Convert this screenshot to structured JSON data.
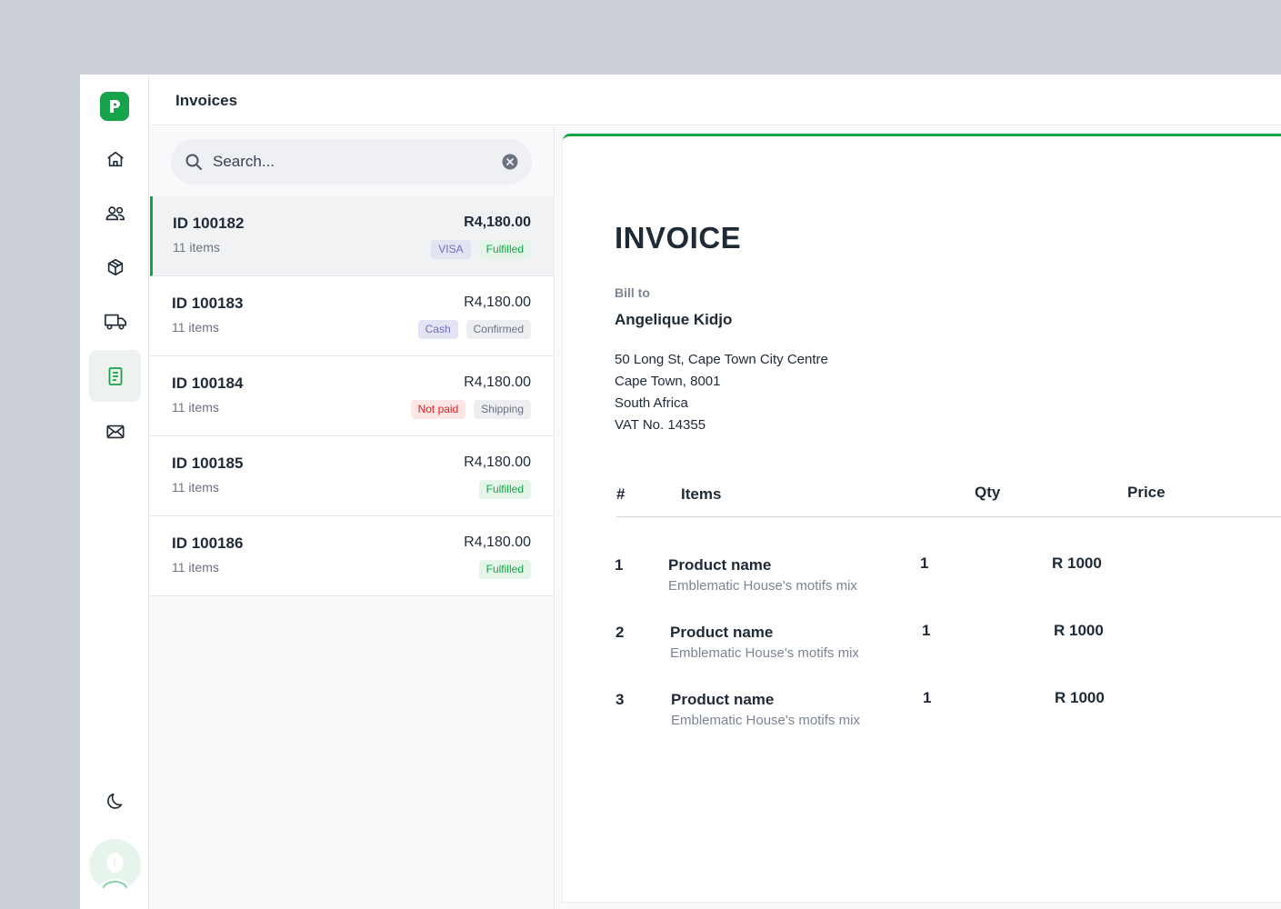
{
  "header": {
    "title": "Invoices"
  },
  "sidebar": {
    "items": [
      {
        "name": "home-icon"
      },
      {
        "name": "users-icon"
      },
      {
        "name": "box-icon"
      },
      {
        "name": "truck-icon"
      },
      {
        "name": "invoice-icon",
        "active": true
      },
      {
        "name": "mail-icon"
      }
    ],
    "theme_toggle": "moon-icon"
  },
  "search": {
    "placeholder": "Search...",
    "value": ""
  },
  "invoices": [
    {
      "id": "ID 100182",
      "items": "11 items",
      "amount": "R4,180.00",
      "badges": [
        "VISA",
        "Fulfilled"
      ]
    },
    {
      "id": "ID 100183",
      "items": "11 items",
      "amount": "R4,180.00",
      "badges": [
        "Cash",
        "Confirmed"
      ]
    },
    {
      "id": "ID 100184",
      "items": "11 items",
      "amount": "R4,180.00",
      "badges": [
        "Not paid",
        "Shipping"
      ]
    },
    {
      "id": "ID 100185",
      "items": "11 items",
      "amount": "R4,180.00",
      "badges": [
        "Fulfilled"
      ]
    },
    {
      "id": "ID 100186",
      "items": "11 items",
      "amount": "R4,180.00",
      "badges": [
        "Fulfilled"
      ]
    }
  ],
  "invoice": {
    "title": "INVOICE",
    "bill_to_label": "Bill to",
    "customer": "Angelique Kidjo",
    "address": [
      "50 Long St, Cape Town City Centre",
      "Cape Town, 8001",
      "South Africa",
      "VAT No. 14355"
    ],
    "columns": {
      "num": "#",
      "items": "Items",
      "qty": "Qty",
      "price": "Price"
    },
    "lines": [
      {
        "num": "1",
        "name": "Product name",
        "desc": "Emblematic House's motifs mix",
        "qty": "1",
        "price": "R 1000"
      },
      {
        "num": "2",
        "name": "Product name",
        "desc": "Emblematic House's motifs mix",
        "qty": "1",
        "price": "R 1000"
      },
      {
        "num": "3",
        "name": "Product name",
        "desc": "Emblematic House's motifs mix",
        "qty": "1",
        "price": "R 1000"
      }
    ]
  },
  "colors": {
    "accent": "#16a34a",
    "background": "#cbd0d8"
  }
}
